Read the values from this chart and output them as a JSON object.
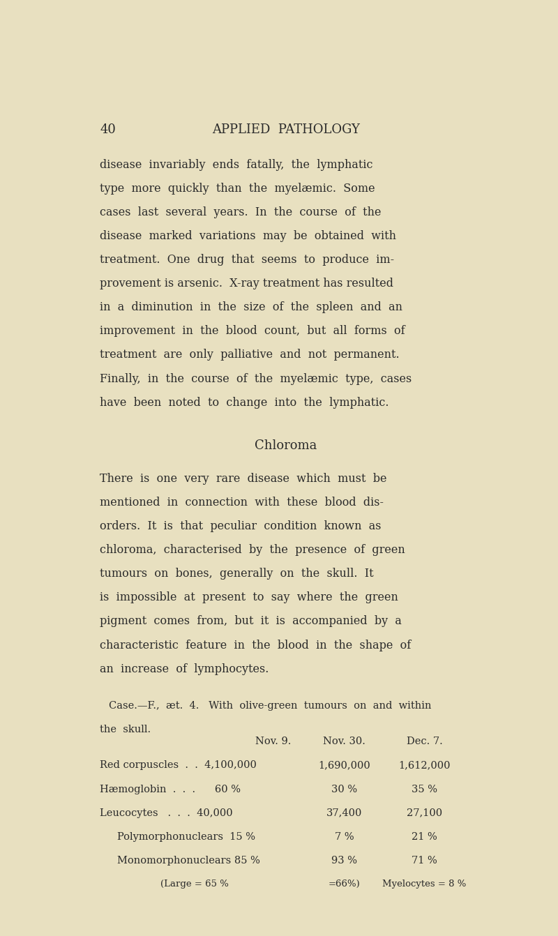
{
  "background_color": "#e8e0c0",
  "page_number": "40",
  "header": "APPLIED  PATHOLOGY",
  "text_color": "#2a2a2a",
  "body_paragraphs": [
    "disease  invariably  ends  fatally,  the  lymphatic",
    "type  more  quickly  than  the  myelæmic.  Some",
    "cases  last  several  years.  In  the  course  of  the",
    "disease  marked  variations  may  be  obtained  with",
    "treatment.  One  drug  that  seems  to  produce  im-",
    "provement is arsenic.  X-ray treatment has resulted",
    "in  a  diminution  in  the  size  of  the  spleen  and  an",
    "improvement  in  the  blood  count,  but  all  forms  of",
    "treatment  are  only  palliative  and  not  permanent.",
    "Finally,  in  the  course  of  the  myelæmic  type,  cases",
    "have  been  noted  to  change  into  the  lymphatic."
  ],
  "section_title": "Chloroma",
  "chloroma_paragraphs": [
    "There  is  one  very  rare  disease  which  must  be",
    "mentioned  in  connection  with  these  blood  dis-",
    "orders.  It  is  that  peculiar  condition  known  as",
    "chloroma,  characterised  by  the  presence  of  green",
    "tumours  on  bones,  generally  on  the  skull.  It",
    "is  impossible  at  present  to  say  where  the  green",
    "pigment  comes  from,  but  it  is  accompanied  by  a",
    "characteristic  feature  in  the  blood  in  the  shape  of",
    "an  increase  of  lymphocytes."
  ],
  "case_intro_line1": "Case.—F.,  æt.  4.   With  olive-green  tumours  on  and  within",
  "case_intro_line2": "the  skull.",
  "table_header_col1": "Nov. 9.",
  "table_header_col2": "Nov. 30.",
  "table_header_col3": "Dec. 7.",
  "row0_label": "Red corpuscles  .  .  4,100,000",
  "row0_c1": "1,690,000",
  "row0_c2": "1,612,000",
  "row1_label": "Hæmoglobin  .  .  .      60 %",
  "row1_c1": "30 %",
  "row1_c2": "35 %",
  "row2_label": "Leucocytes   .  .  .  40,000",
  "row2_c1": "37,400",
  "row2_c2": "27,100",
  "row3_label": "Polymorphonuclears  15 %",
  "row3_c1": "7 %",
  "row3_c2": "21 %",
  "row4_label": "Monomorphonuclears 85 %",
  "row4_c1": "93 %",
  "row4_c2": "71 %",
  "row5_label": "(Large = 65 %",
  "row5_c1": "=66%)",
  "row5_c2": "Myelocytes = 8 %"
}
